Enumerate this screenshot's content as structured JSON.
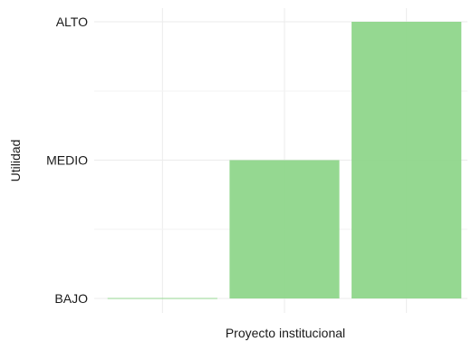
{
  "chart_data": {
    "type": "bar",
    "xlabel": "Proyecto institucional",
    "ylabel": "Utilidad",
    "y_levels": [
      "BAJO",
      "MEDIO",
      "ALTO"
    ],
    "categories": [
      "",
      "",
      ""
    ],
    "values": [
      "BAJO",
      "MEDIO",
      "ALTO"
    ],
    "grid": true,
    "bar_color": "#8fd68b",
    "bar_opacity": 0.95
  }
}
